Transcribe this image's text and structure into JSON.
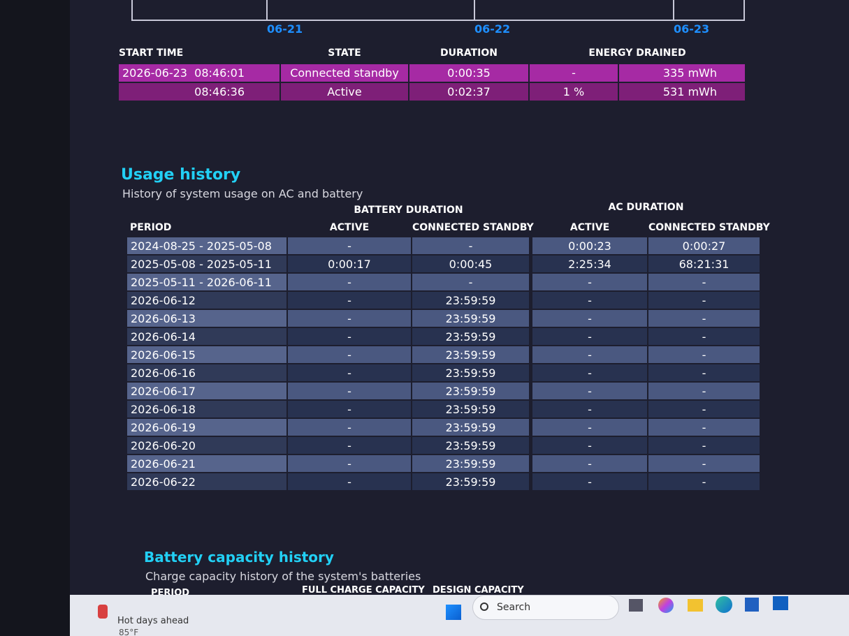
{
  "timeline": {
    "dates": [
      "06-21",
      "06-22",
      "06-23"
    ]
  },
  "recent_usage": {
    "headers": [
      "START TIME",
      "STATE",
      "DURATION",
      "ENERGY DRAINED"
    ],
    "rows": [
      [
        "2026-06-23  08:46:01",
        "Connected standby",
        "0:00:35",
        "-",
        "335 mWh"
      ],
      [
        "08:46:36",
        "Active",
        "0:02:37",
        "1 %",
        "531 mWh"
      ]
    ]
  },
  "usage_history": {
    "title": "Usage history",
    "subtitle": "History of system usage on AC and battery",
    "group_headers": [
      "BATTERY DURATION",
      "AC DURATION"
    ],
    "headers": [
      "PERIOD",
      "ACTIVE",
      "CONNECTED STANDBY",
      "ACTIVE",
      "CONNECTED STANDBY"
    ],
    "rows": [
      [
        "2024-08-25 - 2025-05-08",
        "-",
        "-",
        "0:00:23",
        "0:00:27"
      ],
      [
        "2025-05-08 - 2025-05-11",
        "0:00:17",
        "0:00:45",
        "2:25:34",
        "68:21:31"
      ],
      [
        "2025-05-11 - 2026-06-11",
        "-",
        "-",
        "-",
        "-"
      ],
      [
        "2026-06-12",
        "-",
        "23:59:59",
        "-",
        "-"
      ],
      [
        "2026-06-13",
        "-",
        "23:59:59",
        "-",
        "-"
      ],
      [
        "2026-06-14",
        "-",
        "23:59:59",
        "-",
        "-"
      ],
      [
        "2026-06-15",
        "-",
        "23:59:59",
        "-",
        "-"
      ],
      [
        "2026-06-16",
        "-",
        "23:59:59",
        "-",
        "-"
      ],
      [
        "2026-06-17",
        "-",
        "23:59:59",
        "-",
        "-"
      ],
      [
        "2026-06-18",
        "-",
        "23:59:59",
        "-",
        "-"
      ],
      [
        "2026-06-19",
        "-",
        "23:59:59",
        "-",
        "-"
      ],
      [
        "2026-06-20",
        "-",
        "23:59:59",
        "-",
        "-"
      ],
      [
        "2026-06-21",
        "-",
        "23:59:59",
        "-",
        "-"
      ],
      [
        "2026-06-22",
        "-",
        "23:59:59",
        "-",
        "-"
      ]
    ]
  },
  "battery_capacity_history": {
    "title": "Battery capacity history",
    "subtitle": "Charge capacity history of the system's batteries",
    "headers": [
      "PERIOD",
      "FULL CHARGE CAPACITY",
      "DESIGN CAPACITY"
    ]
  },
  "taskbar": {
    "weather": {
      "headline": "Hot days ahead",
      "temperature": "85°F"
    },
    "search": "Search"
  }
}
